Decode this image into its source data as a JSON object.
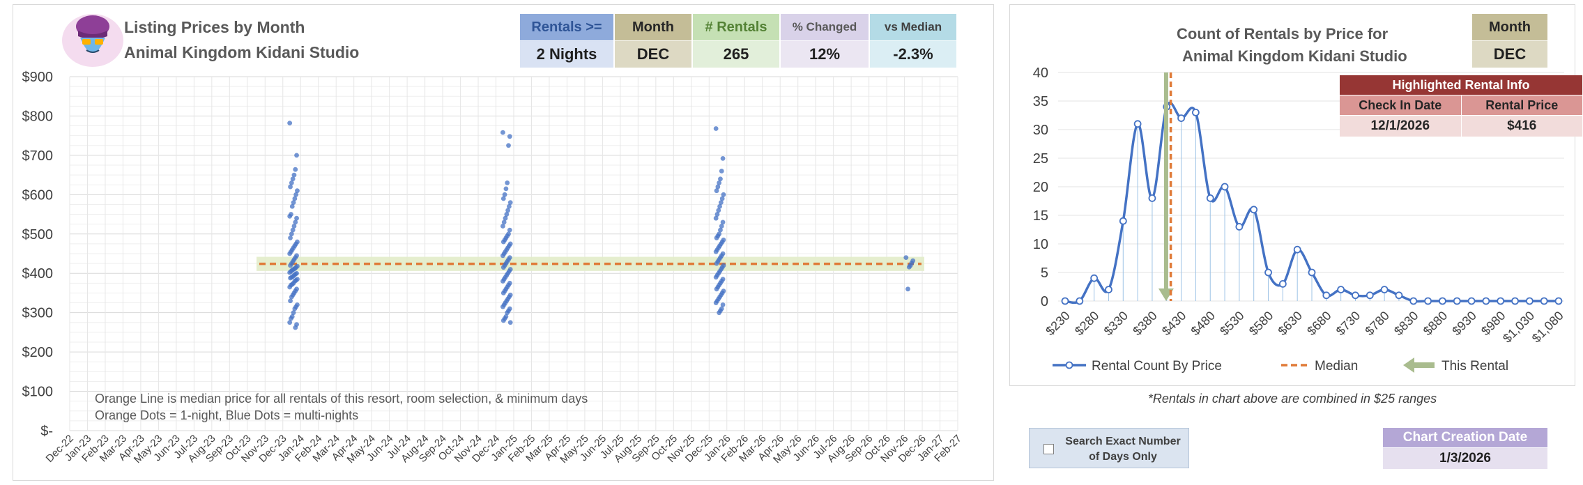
{
  "icons": {
    "logo": "genie-mascot-icon",
    "this_rental": "arrow-down-icon"
  },
  "left": {
    "title_line1": "Listing Prices by Month",
    "title_line2": "Animal Kingdom Kidani Studio",
    "stats": [
      {
        "header": "Rentals >=",
        "value": "2 Nights",
        "hbg": "#8eaadb",
        "hcolor": "#2f5597",
        "vbg": "#d9e2f3"
      },
      {
        "header": "Month",
        "value": "DEC",
        "hbg": "#c4bd97",
        "hcolor": "#262626",
        "vbg": "#ddd9c3"
      },
      {
        "header": "# Rentals",
        "value": "265",
        "hbg": "#c5e0b4",
        "hcolor": "#548235",
        "vbg": "#e2efda"
      },
      {
        "header": "% Changed",
        "value": "12%",
        "hbg": "#d9d2e9",
        "hcolor": "#595959",
        "vbg": "#ebe6f2"
      },
      {
        "header": "vs Median",
        "value": "-2.3%",
        "hbg": "#b4dbe6",
        "hcolor": "#404040",
        "vbg": "#dbeef4"
      }
    ],
    "notes": [
      "Orange Line is median price for all rentals of this resort, room selection, & minimum days",
      "Orange Dots = 1-night, Blue Dots = multi-nights"
    ]
  },
  "right": {
    "title_line1": "Count of Rentals by Price for",
    "title_line2": "Animal Kingdom Kidani Studio",
    "month": {
      "header": "Month",
      "value": "DEC"
    },
    "highlight": {
      "title": "Highlighted Rental Info",
      "col1": "Check In Date",
      "col2": "Rental Price",
      "val1": "12/1/2026",
      "val2": "$416"
    },
    "footnote": "*Rentals in chart above are combined in $25 ranges"
  },
  "controls": {
    "exact_days_label": "Search Exact Number of Days Only",
    "creation_header": "Chart Creation Date",
    "creation_value": "1/3/2026"
  },
  "colors": {
    "blue_dots": "#4472c4",
    "median_orange": "#e07b39",
    "median_band": "#e2ecc9",
    "line_blue": "#4472c4",
    "arrow_green": "#a9bc8e",
    "highlight_dark": "#963634",
    "highlight_mid": "#da9694",
    "highlight_light": "#f2dcdb"
  },
  "chart_data": [
    {
      "type": "scatter",
      "title": "Listing Prices by Month",
      "ylim": [
        100,
        900
      ],
      "y_ticks": [
        0,
        100,
        200,
        300,
        400,
        500,
        600,
        700,
        800,
        900
      ],
      "y_tick_labels": [
        "$-",
        "$100",
        "$200",
        "$300",
        "$400",
        "$500",
        "$600",
        "$700",
        "$800",
        "$900"
      ],
      "x_tick_labels": [
        "Dec-22",
        "Jan-23",
        "Feb-23",
        "Mar-23",
        "Apr-23",
        "May-23",
        "Jun-23",
        "Jul-23",
        "Aug-23",
        "Sep-23",
        "Oct-23",
        "Nov-23",
        "Dec-23",
        "Jan-24",
        "Feb-24",
        "Mar-24",
        "Apr-24",
        "May-24",
        "Jun-24",
        "Jul-24",
        "Aug-24",
        "Sep-24",
        "Oct-24",
        "Nov-24",
        "Dec-24",
        "Jan-25",
        "Feb-25",
        "Mar-25",
        "Apr-25",
        "May-25",
        "Jun-25",
        "Jul-25",
        "Aug-25",
        "Sep-25",
        "Oct-25",
        "Nov-25",
        "Dec-25",
        "Jan-26",
        "Feb-26",
        "Mar-26",
        "Apr-26",
        "May-26",
        "Jun-26",
        "Jul-26",
        "Aug-26",
        "Sep-26",
        "Oct-26",
        "Nov-26",
        "Dec-26",
        "Jan-27",
        "Feb-27"
      ],
      "grid": true,
      "median": 424,
      "series": [
        {
          "name": "Blue Dots = multi-nights",
          "clusters": [
            {
              "x_month": 12.6,
              "values": [
                782,
                700,
                664,
                650,
                640,
                630,
                620,
                610,
                600,
                590,
                580,
                570,
                550,
                545,
                540,
                530,
                520,
                510,
                500,
                490,
                480,
                475,
                470,
                465,
                460,
                455,
                450,
                445,
                440,
                435,
                430,
                425,
                420,
                418,
                415,
                412,
                410,
                408,
                405,
                402,
                400,
                398,
                395,
                392,
                390,
                388,
                385,
                382,
                380,
                375,
                372,
                370,
                365,
                360,
                355,
                350,
                345,
                340,
                330,
                320,
                315,
                310,
                300,
                290,
                285,
                275,
                270,
                262
              ]
            },
            {
              "x_month": 24.6,
              "values": [
                758,
                748,
                725,
                630,
                615,
                600,
                590,
                580,
                570,
                560,
                550,
                540,
                530,
                520,
                510,
                500,
                495,
                490,
                485,
                480,
                475,
                470,
                465,
                460,
                455,
                450,
                445,
                440,
                435,
                430,
                425,
                420,
                415,
                410,
                405,
                400,
                395,
                390,
                385,
                380,
                375,
                370,
                365,
                360,
                355,
                350,
                345,
                340,
                335,
                330,
                325,
                320,
                315,
                310,
                305,
                300,
                290,
                285,
                280,
                275
              ]
            },
            {
              "x_month": 36.6,
              "values": [
                768,
                692,
                660,
                640,
                630,
                620,
                610,
                600,
                590,
                580,
                570,
                560,
                550,
                540,
                530,
                520,
                510,
                500,
                495,
                490,
                485,
                480,
                475,
                470,
                465,
                460,
                455,
                450,
                445,
                440,
                435,
                430,
                425,
                420,
                415,
                410,
                405,
                400,
                395,
                390,
                385,
                380,
                375,
                370,
                365,
                360,
                355,
                350,
                345,
                340,
                335,
                330,
                325,
                320,
                310,
                305,
                300
              ]
            },
            {
              "x_month": 47.3,
              "values": [
                440,
                432,
                426,
                420,
                416,
                360
              ]
            }
          ]
        }
      ]
    },
    {
      "type": "line",
      "title": "Count of Rentals by Price for Animal Kingdom Kidani Studio",
      "x": [
        230,
        255,
        280,
        305,
        330,
        355,
        380,
        405,
        430,
        455,
        480,
        505,
        530,
        555,
        580,
        605,
        630,
        655,
        680,
        705,
        730,
        755,
        780,
        805,
        830,
        855,
        880,
        905,
        930,
        955,
        980,
        1005,
        1030,
        1055,
        1080
      ],
      "x_tick_labels": [
        "$230",
        "$280",
        "$330",
        "$380",
        "$430",
        "$480",
        "$530",
        "$580",
        "$630",
        "$680",
        "$730",
        "$780",
        "$830",
        "$880",
        "$930",
        "$980",
        "$1,030",
        "$1,080"
      ],
      "ylim": [
        0,
        40
      ],
      "y_ticks": [
        0,
        5,
        10,
        15,
        20,
        25,
        30,
        35,
        40
      ],
      "series": [
        {
          "name": "Rental Count By Price",
          "values": [
            0,
            0,
            4,
            2,
            14,
            31,
            18,
            34,
            32,
            33,
            18,
            20,
            13,
            16,
            5,
            3,
            9,
            5,
            1,
            2,
            1,
            1,
            2,
            1,
            0,
            0,
            0,
            0,
            0,
            0,
            0,
            0,
            0,
            0,
            0
          ]
        }
      ],
      "median": 412,
      "this_rental": 404,
      "legend": [
        "Rental Count By Price",
        "Median",
        "This Rental"
      ],
      "legend_position": "bottom"
    }
  ]
}
